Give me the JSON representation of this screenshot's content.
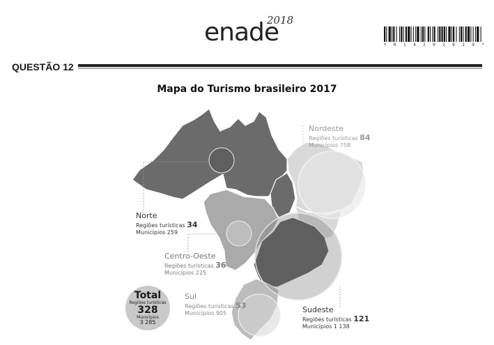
{
  "header": {
    "logo": "enade",
    "year": "2018",
    "barcode_text": "* R 1 4 2 0 1 8 1 9 *"
  },
  "question": {
    "label": "QUESTÃO 12"
  },
  "map": {
    "title": "Mapa do Turismo brasileiro 2017",
    "regions": {
      "norte": {
        "name": "Norte",
        "regioes_label": "Regiões turísticas",
        "regioes": "34",
        "municipios_label": "Municípios",
        "municipios": "259"
      },
      "nordeste": {
        "name": "Nordeste",
        "regioes_label": "Regiões turísticas",
        "regioes": "84",
        "municipios_label": "Municípios",
        "municipios": "758"
      },
      "centro_oeste": {
        "name": "Centro-Oeste",
        "regioes_label": "Regiões turísticas",
        "regioes": "36",
        "municipios_label": "Municípios",
        "municipios": "225"
      },
      "sul": {
        "name": "Sul",
        "regioes_label": "Regiões turísticas",
        "regioes": "53",
        "municipios_label": "Municípios",
        "municipios": "905"
      },
      "sudeste": {
        "name": "Sudeste",
        "regioes_label": "Regiões turísticas",
        "regioes": "121",
        "municipios_label": "Municípios",
        "municipios": "1 138"
      }
    },
    "total": {
      "label": "Total",
      "regioes_label": "Regiões turísticas",
      "regioes": "328",
      "municipios_label": "Municípios",
      "municipios": "3 285"
    },
    "colors": {
      "norte": "#6b6b6b",
      "nordeste": "#d9d9d9",
      "centro_oeste": "#aaaaaa",
      "sudeste": "#505050",
      "sul": "#bcbcbc"
    }
  }
}
